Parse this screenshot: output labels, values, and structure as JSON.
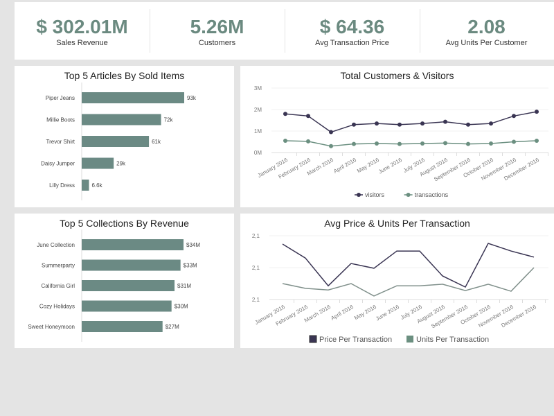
{
  "kpis": [
    {
      "value": "$ 302.01M",
      "label": "Sales Revenue"
    },
    {
      "value": "5.26M",
      "label": "Customers"
    },
    {
      "value": "$ 64.36",
      "label": "Avg Transaction Price"
    },
    {
      "value": "2.08",
      "label": "Avg Units Per Customer"
    }
  ],
  "colors": {
    "bar": "#6b8a84",
    "primary": "#3a3553",
    "secondary": "#6b8f80",
    "kpi": "#6b8a80"
  },
  "chart_data": [
    {
      "type": "bar",
      "title": "Top 5 Articles By Sold Items",
      "categories": [
        "Piper Jeans",
        "Millie Boots",
        "Trevor Shirt",
        "Daisy Jumper",
        "Lilly Dress"
      ],
      "values": [
        93000,
        72000,
        61000,
        29000,
        6600
      ],
      "labels": [
        "93k",
        "72k",
        "61k",
        "29k",
        "6.6k"
      ],
      "orientation": "horizontal"
    },
    {
      "type": "line",
      "title": "Total Customers & Visitors",
      "categories": [
        "January 2016",
        "February 2016",
        "March 2016",
        "April 2016",
        "May 2016",
        "June 2016",
        "July 2016",
        "August 2016",
        "September 2016",
        "October 2016",
        "November 2016",
        "December 2016"
      ],
      "yticks": [
        "0M",
        "1M",
        "2M",
        "3M"
      ],
      "ylim": [
        0,
        3000000
      ],
      "grid": true,
      "legend": "bottom",
      "series": [
        {
          "name": "visitors",
          "values": [
            1800000,
            1700000,
            950000,
            1300000,
            1350000,
            1300000,
            1350000,
            1430000,
            1300000,
            1350000,
            1700000,
            1900000
          ]
        },
        {
          "name": "transactions",
          "values": [
            550000,
            520000,
            300000,
            400000,
            420000,
            400000,
            420000,
            440000,
            400000,
            420000,
            500000,
            550000
          ]
        }
      ]
    },
    {
      "type": "bar",
      "title": "Top 5 Collections By Revenue",
      "categories": [
        "June Collection",
        "Summerparty",
        "California Girl",
        "Cozy Holidays",
        "Sweet Honeymoon"
      ],
      "values": [
        34,
        33,
        31,
        30,
        27
      ],
      "labels": [
        "$34M",
        "$33M",
        "$31M",
        "$30M",
        "$27M"
      ],
      "orientation": "horizontal"
    },
    {
      "type": "line",
      "title": "Avg Price & Units Per Transaction",
      "categories": [
        "January 2016",
        "February 2016",
        "March 2016",
        "April 2016",
        "May 2016",
        "June 2016",
        "July 2016",
        "August 2016",
        "September 2016",
        "October 2016",
        "November 2016",
        "December 2016"
      ],
      "yticks": [
        "2,1",
        "2,1",
        "2,1"
      ],
      "ylim": [
        0,
        2
      ],
      "grid": true,
      "legend": "bottom",
      "series": [
        {
          "name": "Price Per Transaction",
          "values": [
            1.74,
            1.3,
            0.43,
            1.13,
            0.98,
            1.52,
            1.52,
            0.74,
            0.39,
            1.76,
            1.52,
            1.33
          ]
        },
        {
          "name": "Units Per Transaction",
          "values": [
            0.5,
            0.35,
            0.3,
            0.5,
            0.11,
            0.43,
            0.43,
            0.48,
            0.28,
            0.48,
            0.26,
            1.0
          ]
        }
      ]
    }
  ]
}
